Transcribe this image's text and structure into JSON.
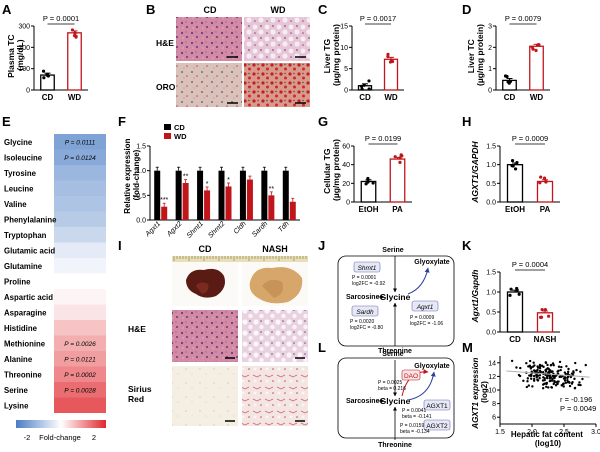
{
  "colors": {
    "cd": "#000000",
    "wd": "#c0161b",
    "heat_low": "#4a7cc4",
    "heat_high": "#e0272d",
    "box_fill": "#e6e8f5",
    "box_stroke": "#6b6fb3"
  },
  "panels": {
    "A": {
      "letter": "A",
      "ylabel": [
        "Plasma TC",
        "(mg/dL)"
      ],
      "ticks": [
        "0",
        "100",
        "200",
        "300"
      ],
      "categories": [
        "CD",
        "WD"
      ],
      "pvalue": "P = 0.0001"
    },
    "B": {
      "letter": "B",
      "cols": [
        "CD",
        "WD"
      ],
      "rows": [
        "H&E",
        "ORO"
      ]
    },
    "C": {
      "letter": "C",
      "ylabel": [
        "Liver TG",
        "(µg/mg protein)"
      ],
      "ticks": [
        "0",
        "5",
        "10",
        "15"
      ],
      "categories": [
        "CD",
        "WD"
      ],
      "pvalue": "P = 0.0017"
    },
    "D": {
      "letter": "D",
      "ylabel": [
        "Liver TC",
        "(µg/mg protein)"
      ],
      "ticks": [
        "0",
        "1",
        "2",
        "3"
      ],
      "categories": [
        "CD",
        "WD"
      ],
      "pvalue": "P = 0.0079"
    },
    "E": {
      "letter": "E",
      "rows": [
        {
          "name": "Glycine",
          "p": "P = 0.0111"
        },
        {
          "name": "Isoleucine",
          "p": "P = 0.0124"
        },
        {
          "name": "Tyrosine",
          "p": ""
        },
        {
          "name": "Leucine",
          "p": ""
        },
        {
          "name": "Valine",
          "p": ""
        },
        {
          "name": "Phenylalanine",
          "p": ""
        },
        {
          "name": "Tryptophan",
          "p": ""
        },
        {
          "name": "Glutamic acid",
          "p": ""
        },
        {
          "name": "Glutamine",
          "p": ""
        },
        {
          "name": "Proline",
          "p": ""
        },
        {
          "name": "Aspartic acid",
          "p": ""
        },
        {
          "name": "Asparagine",
          "p": ""
        },
        {
          "name": "Histidine",
          "p": ""
        },
        {
          "name": "Methionine",
          "p": "P = 0.0026"
        },
        {
          "name": "Alanine",
          "p": "P = 0.0121"
        },
        {
          "name": "Threonine",
          "p": "P = 0.0002"
        },
        {
          "name": "Serine",
          "p": "P = 0.0028"
        },
        {
          "name": "Lysine",
          "p": ""
        }
      ],
      "scale_labels": [
        "-2",
        "Fold-change",
        "2"
      ]
    },
    "F": {
      "letter": "F",
      "ylabel": [
        "Relative expression",
        "(fold-change)"
      ],
      "ticks": [
        "0.0",
        "0.5",
        "1.0",
        "1.5"
      ],
      "legend": [
        "CD",
        "WD"
      ]
    },
    "G": {
      "letter": "G",
      "ylabel": [
        "Cellular TG",
        "(µg/mg protein)"
      ],
      "ticks": [
        "0",
        "20",
        "40",
        "60"
      ],
      "categories": [
        "EtOH",
        "PA"
      ],
      "pvalue": "P = 0.0199"
    },
    "H": {
      "letter": "H",
      "ylabel": [
        "AGXT1/GAPDH"
      ],
      "ticks": [
        "0.0",
        "0.5",
        "1.0",
        "1.5"
      ],
      "categories": [
        "EtOH",
        "PA"
      ],
      "pvalue": "P = 0.0009"
    },
    "I": {
      "letter": "I",
      "cols": [
        "CD",
        "NASH"
      ],
      "rows": [
        "H&E",
        "Sirius",
        "Red"
      ]
    },
    "J": {
      "letter": "J",
      "serine": "Serine",
      "glyoxylate": "Glyoxylate",
      "sarcosine": "Sarcosine",
      "glycine": "Glycine",
      "threonine": "Threonine",
      "shmt1": "Shmt1",
      "shmt1_p": "P = 0.0001",
      "shmt1_fc": "log2FC = -0.92",
      "sardh": "Sardh",
      "sardh_p": "P = 0.0020",
      "sardh_fc": "log2FC = -0.80",
      "agxt1": "Agxt1",
      "agxt1_p": "P = 0.0009",
      "agxt1_fc": "log2FC = -1.06"
    },
    "K": {
      "letter": "K",
      "ylabel": [
        "Agxt1/Gapdh"
      ],
      "ticks": [
        "0.0",
        "0.5",
        "1.0",
        "1.5"
      ],
      "categories": [
        "CD",
        "NASH"
      ],
      "pvalue": "P = 0.0004"
    },
    "L": {
      "letter": "L",
      "serine": "Serine",
      "glyoxylate": "Glyoxylate",
      "sarcosine": "Sarcosine",
      "glycine": "Glycine",
      "threonine": "Threonine",
      "dao": "DAO",
      "dao_p": "P = 0.0025",
      "dao_beta": "beta = 0.216",
      "agxt1": "AGXT1",
      "agxt1_p": "P = 0.0041",
      "agxt1_beta": "beta = -0.141",
      "agxt2": "AGXT2",
      "agxt2_p": "P = 0.0159",
      "agxt2_beta": "beta = -0.134"
    },
    "M": {
      "letter": "M",
      "ylabel": [
        "AGXT1 expression",
        "(log2)"
      ],
      "xlabel": [
        "Hepatic fat content",
        "(log10)"
      ],
      "yticks": [
        "6",
        "8",
        "10",
        "12",
        "14"
      ],
      "xticks": [
        "1.5",
        "2.0",
        "2.5",
        "3.0"
      ],
      "r_text": "r = -0.196",
      "p_text": "P = 0.0049"
    }
  },
  "chart_data": [
    {
      "panel": "A",
      "type": "bar",
      "categories": [
        "CD",
        "WD"
      ],
      "values": [
        70,
        268
      ],
      "ylim": [
        0,
        300
      ]
    },
    {
      "panel": "C",
      "type": "bar",
      "categories": [
        "CD",
        "WD"
      ],
      "values": [
        1.0,
        7.2
      ],
      "ylim": [
        0,
        15
      ]
    },
    {
      "panel": "D",
      "type": "bar",
      "categories": [
        "CD",
        "WD"
      ],
      "values": [
        0.45,
        2.05
      ],
      "ylim": [
        0,
        3
      ]
    },
    {
      "panel": "E",
      "type": "heatmap",
      "rows": [
        "Glycine",
        "Isoleucine",
        "Tyrosine",
        "Leucine",
        "Valine",
        "Phenylalanine",
        "Tryptophan",
        "Glutamic acid",
        "Glutamine",
        "Proline",
        "Aspartic acid",
        "Asparagine",
        "Histidine",
        "Methionine",
        "Alanine",
        "Threonine",
        "Serine",
        "Lysine"
      ],
      "values": [
        -1.4,
        -1.3,
        -1.1,
        -1.0,
        -0.9,
        -0.8,
        -0.6,
        -0.3,
        -0.15,
        0.0,
        0.1,
        0.25,
        0.55,
        0.75,
        0.9,
        1.1,
        1.35,
        1.55
      ],
      "range": [
        -2,
        2
      ]
    },
    {
      "panel": "F",
      "type": "bar",
      "categories": [
        "Agxt1",
        "Agxt2",
        "Shmt1",
        "Shmt2",
        "Cldh",
        "Sardh",
        "Tdh"
      ],
      "series": [
        {
          "name": "CD",
          "values": [
            1.0,
            1.0,
            1.0,
            1.0,
            1.0,
            1.0,
            1.0
          ]
        },
        {
          "name": "WD",
          "values": [
            0.27,
            0.75,
            0.6,
            0.68,
            0.82,
            0.5,
            0.37
          ]
        }
      ],
      "stars": [
        "***",
        "**",
        "*",
        "*",
        "",
        "**",
        ""
      ],
      "ylim": [
        0,
        1.5
      ]
    },
    {
      "panel": "G",
      "type": "bar",
      "categories": [
        "EtOH",
        "PA"
      ],
      "values": [
        22,
        46
      ],
      "ylim": [
        0,
        60
      ]
    },
    {
      "panel": "H",
      "type": "bar",
      "categories": [
        "EtOH",
        "PA"
      ],
      "values": [
        1.0,
        0.55
      ],
      "ylim": [
        0,
        1.5
      ]
    },
    {
      "panel": "K",
      "type": "bar",
      "categories": [
        "CD",
        "NASH"
      ],
      "values": [
        1.0,
        0.48
      ],
      "ylim": [
        0,
        1.5
      ]
    },
    {
      "panel": "M",
      "type": "scatter",
      "xlim": [
        1.5,
        3.0
      ],
      "ylim": [
        5,
        15
      ],
      "r": -0.196,
      "p": 0.0049
    }
  ]
}
